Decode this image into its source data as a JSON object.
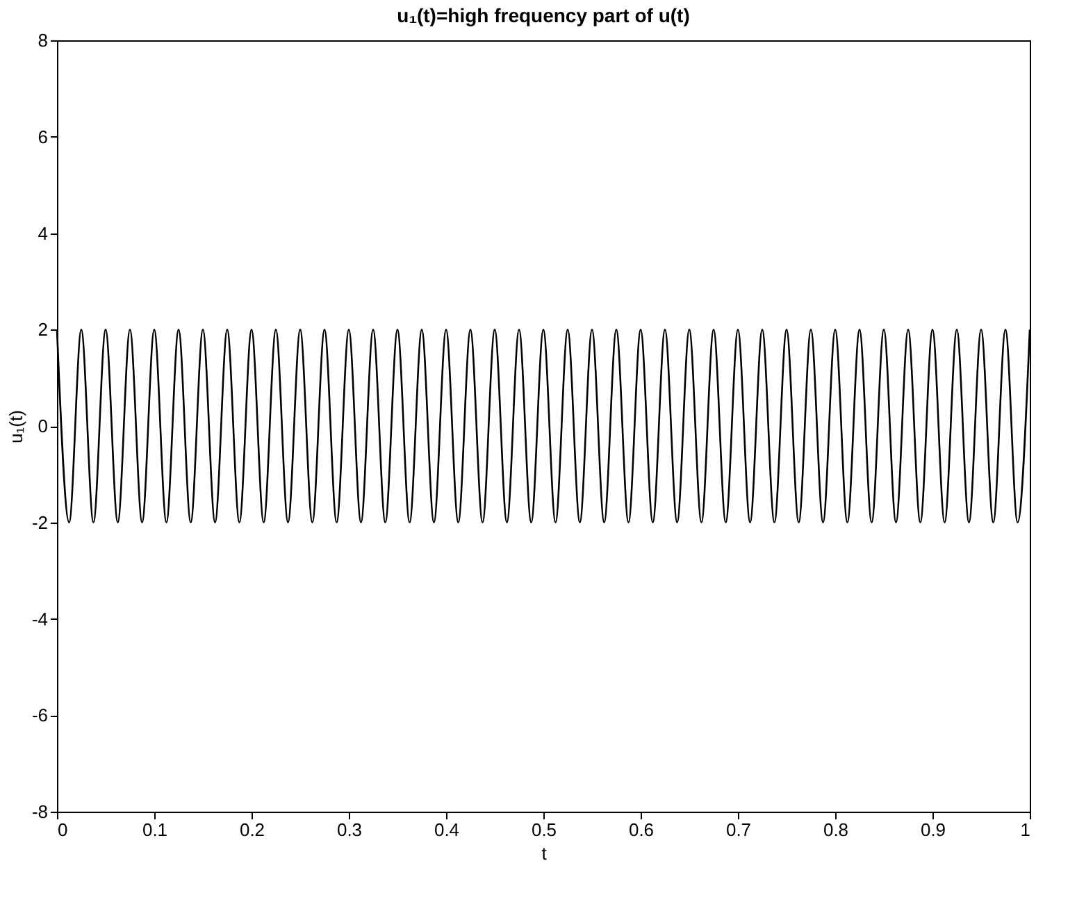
{
  "chart_data": {
    "type": "line",
    "title": "u₁(t)=high frequency part of u(t)",
    "xlabel": "t",
    "ylabel": "u₁(t)",
    "x": [
      0,
      0.0125,
      0.025,
      0.0375,
      0.05,
      0.0625,
      0.075,
      0.0875,
      0.1,
      0.1125,
      0.125,
      0.1375,
      0.15,
      0.1625,
      0.175,
      0.1875,
      0.2,
      0.2125,
      0.225,
      0.2375,
      0.25,
      0.2625,
      0.275,
      0.2875,
      0.3,
      0.3125,
      0.325,
      0.3375,
      0.35,
      0.3625,
      0.375,
      0.3875,
      0.4,
      0.4125,
      0.425,
      0.4375,
      0.45,
      0.4625,
      0.475,
      0.4875,
      0.5,
      0.5125,
      0.525,
      0.5375,
      0.55,
      0.5625,
      0.575,
      0.5875,
      0.6,
      0.6125,
      0.625,
      0.6375,
      0.65,
      0.6625,
      0.675,
      0.6875,
      0.7,
      0.7125,
      0.725,
      0.7375,
      0.75,
      0.7625,
      0.775,
      0.7875,
      0.8,
      0.8125,
      0.825,
      0.8375,
      0.85,
      0.8625,
      0.875,
      0.8875,
      0.9,
      0.9125,
      0.925,
      0.9375,
      0.95,
      0.9625,
      0.975,
      0.9875,
      1
    ],
    "series": [
      {
        "color": "#000000",
        "values": [
          2,
          -2,
          2,
          -2,
          2,
          -2,
          2,
          -2,
          2,
          -2,
          2,
          -2,
          2,
          -2,
          2,
          -2,
          2,
          -2,
          2,
          -2,
          2,
          -2,
          2,
          -2,
          2,
          -2,
          2,
          -2,
          2,
          -2,
          2,
          -2,
          2,
          -2,
          2,
          -2,
          2,
          -2,
          2,
          -2,
          2,
          -2,
          2,
          -2,
          2,
          -2,
          2,
          -2,
          2,
          -2,
          2,
          -2,
          2,
          -2,
          2,
          -2,
          2,
          -2,
          2,
          -2,
          2,
          -2,
          2,
          -2,
          2,
          -2,
          2,
          -2,
          2,
          -2,
          2,
          -2,
          2,
          -2,
          2,
          -2,
          2,
          -2,
          2,
          -2,
          2
        ]
      }
    ],
    "xlim": [
      0,
      1
    ],
    "xticks": [
      0,
      0.1,
      0.2,
      0.3,
      0.4,
      0.5,
      0.6,
      0.7,
      0.8,
      0.9,
      1
    ],
    "ylim": [
      -8,
      8
    ],
    "yticks": [
      -8,
      -6,
      -4,
      -2,
      0,
      2,
      4,
      6,
      8
    ],
    "grid": false,
    "marker": "none",
    "line_style": "solid"
  }
}
